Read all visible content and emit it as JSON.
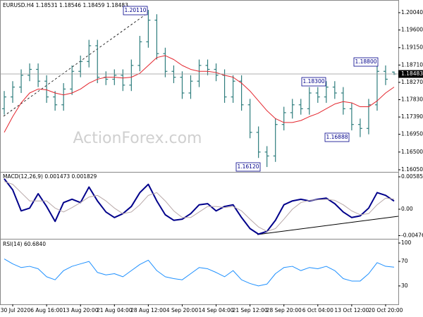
{
  "chart_data": [
    {
      "type": "ohlc",
      "title": "EURUSD.H4  1.18531 1.18546 1.18459 1.18483",
      "watermark": "ActionForex.com",
      "categories": [
        null,
        "30 Jul 2020",
        null,
        null,
        null,
        "6 Aug 16:00",
        null,
        null,
        null,
        "13 Aug 20:00",
        null,
        null,
        null,
        "21 Aug 04:00",
        null,
        null,
        null,
        "28 Aug 12:00",
        null,
        null,
        null,
        "4 Sep 20:00",
        null,
        null,
        null,
        "14 Sep 04:00",
        null,
        null,
        null,
        "21 Sep 12:00",
        null,
        null,
        null,
        "28 Sep 20:00",
        null,
        null,
        null,
        "6 Oct 04:00",
        null,
        null,
        null,
        "13 Oct 12:00",
        null,
        null,
        null,
        "20 Oct 20:00",
        null
      ],
      "open": [
        1.176,
        1.179,
        1.1815,
        1.1845,
        1.186,
        1.183,
        1.179,
        1.177,
        1.181,
        1.1855,
        1.188,
        1.192,
        1.184,
        1.1835,
        1.1845,
        1.182,
        1.187,
        1.193,
        1.1985,
        1.19,
        1.1855,
        1.184,
        1.18,
        1.183,
        1.187,
        1.186,
        1.1845,
        1.179,
        1.183,
        1.177,
        1.17,
        1.165,
        1.164,
        1.172,
        1.175,
        1.177,
        1.176,
        1.18,
        1.179,
        1.1815,
        1.18,
        1.176,
        1.172,
        1.171,
        1.177,
        1.1855,
        1.18531
      ],
      "high": [
        1.1805,
        1.183,
        1.186,
        1.1875,
        1.1875,
        1.1845,
        1.1805,
        1.1825,
        1.187,
        1.1895,
        1.1935,
        1.1935,
        1.1855,
        1.186,
        1.186,
        1.1885,
        1.1945,
        1.2011,
        1.2,
        1.1915,
        1.187,
        1.1855,
        1.1845,
        1.1885,
        1.1885,
        1.1875,
        1.186,
        1.1845,
        1.1845,
        1.1785,
        1.1715,
        1.1665,
        1.1735,
        1.1765,
        1.1785,
        1.1785,
        1.1815,
        1.1815,
        1.183,
        1.183,
        1.1815,
        1.1775,
        1.1735,
        1.1785,
        1.188,
        1.187,
        1.18546
      ],
      "low": [
        1.1745,
        1.1775,
        1.18,
        1.183,
        1.1815,
        1.1775,
        1.1755,
        1.1755,
        1.1795,
        1.184,
        1.1865,
        1.1825,
        1.182,
        1.182,
        1.1805,
        1.1805,
        1.1855,
        1.1915,
        1.1885,
        1.184,
        1.1825,
        1.1785,
        1.1785,
        1.1815,
        1.1845,
        1.183,
        1.1775,
        1.1775,
        1.1755,
        1.1685,
        1.1635,
        1.1612,
        1.1625,
        1.1705,
        1.1735,
        1.1745,
        1.1745,
        1.1775,
        1.1775,
        1.1785,
        1.1745,
        1.1705,
        1.1688,
        1.1695,
        1.1755,
        1.182,
        1.18459
      ],
      "close": [
        1.179,
        1.1815,
        1.1845,
        1.186,
        1.183,
        1.179,
        1.177,
        1.181,
        1.1855,
        1.188,
        1.192,
        1.184,
        1.1835,
        1.1845,
        1.182,
        1.187,
        1.193,
        1.1985,
        1.19,
        1.1855,
        1.184,
        1.18,
        1.183,
        1.187,
        1.186,
        1.1845,
        1.179,
        1.183,
        1.177,
        1.17,
        1.165,
        1.164,
        1.172,
        1.175,
        1.177,
        1.176,
        1.18,
        1.179,
        1.1815,
        1.18,
        1.176,
        1.172,
        1.171,
        1.177,
        1.1855,
        1.1835,
        1.18483
      ],
      "color": "#2e7d7d",
      "overlay": {
        "color": "#e4262e",
        "values": [
          1.17,
          1.174,
          1.1775,
          1.18,
          1.181,
          1.1808,
          1.18,
          1.1795,
          1.18,
          1.181,
          1.1825,
          1.1835,
          1.184,
          1.184,
          1.1838,
          1.184,
          1.185,
          1.187,
          1.189,
          1.1895,
          1.1885,
          1.187,
          1.186,
          1.1855,
          1.1855,
          1.1852,
          1.1845,
          1.184,
          1.1825,
          1.1805,
          1.178,
          1.1755,
          1.1735,
          1.1725,
          1.1725,
          1.173,
          1.174,
          1.1748,
          1.176,
          1.1772,
          1.1778,
          1.1775,
          1.1765,
          1.1765,
          1.178,
          1.18,
          1.1815
        ]
      },
      "current_price": 1.18483,
      "annotations": [
        "1.20110",
        "1.18800",
        "1.18300",
        "1.16888",
        "1.16120"
      ],
      "ylim": [
        1.15996,
        1.20326
      ],
      "yticks": [
        {
          "value": 1.2004,
          "label": "1.20040"
        },
        {
          "value": 1.196,
          "label": "1.19600"
        },
        {
          "value": 1.1915,
          "label": "1.19150"
        },
        {
          "value": 1.1871,
          "label": "1.18710"
        },
        {
          "value": 1.1827,
          "label": "1.18270"
        },
        {
          "value": 1.1783,
          "label": "1.17830"
        },
        {
          "value": 1.1739,
          "label": "1.17390"
        },
        {
          "value": 1.1695,
          "label": "1.16950"
        },
        {
          "value": 1.165,
          "label": "1.16500"
        },
        {
          "value": 1.1605,
          "label": "1.16050"
        }
      ]
    },
    {
      "type": "line",
      "title": "MACD(12,26,9) 0.001473 0.001829",
      "series": [
        {
          "color": "#00008b",
          "width": 2,
          "values": [
            0.0055,
            0.0035,
            -0.0003,
            0.0002,
            0.0028,
            0.0005,
            -0.0022,
            0.0012,
            0.0018,
            0.0012,
            0.004,
            0.0015,
            -0.0005,
            -0.0015,
            -0.0008,
            0.0005,
            0.003,
            0.0045,
            0.0015,
            -0.001,
            -0.002,
            -0.0018,
            -0.0008,
            0.0008,
            0.001,
            -0.0003,
            0.0005,
            0.0008,
            -0.0015,
            -0.0035,
            -0.0045,
            -0.004,
            -0.002,
            0.0008,
            0.0015,
            0.0018,
            0.0015,
            0.0018,
            0.002,
            0.001,
            -0.0005,
            -0.0015,
            -0.0012,
            0.0002,
            0.003,
            0.0025,
            0.001473
          ]
        },
        {
          "color": "#b8a8a8",
          "width": 1,
          "values": [
            0.005,
            0.0045,
            0.003,
            0.0015,
            0.0015,
            0.0015,
            0.0002,
            -0.0005,
            0.0003,
            0.0012,
            0.0022,
            0.0025,
            0.0015,
            0.0002,
            -0.0008,
            -0.0005,
            0.0008,
            0.0025,
            0.003,
            0.0015,
            -0.0003,
            -0.0015,
            -0.0015,
            -0.0005,
            0.0005,
            0.0005,
            0.0003,
            0.0005,
            -0.0003,
            -0.0018,
            -0.0032,
            -0.004,
            -0.0035,
            -0.0018,
            0.0,
            0.0012,
            0.0016,
            0.0017,
            0.0018,
            0.0016,
            0.0008,
            -0.0003,
            -0.001,
            -0.0008,
            0.0008,
            0.002,
            0.001829
          ]
        }
      ],
      "ylim": [
        -0.005343,
        0.006488
      ],
      "yticks": [
        0.005852,
        {
          "value": 0,
          "label": "0.00"
        },
        -0.004761
      ]
    },
    {
      "type": "line",
      "title": "RSI(14) 60.6840",
      "series": [
        {
          "color": "#1e90ff",
          "width": 1,
          "values": [
            74,
            66,
            60,
            62,
            58,
            45,
            40,
            55,
            62,
            66,
            70,
            52,
            48,
            50,
            45,
            55,
            65,
            72,
            55,
            45,
            42,
            40,
            50,
            60,
            58,
            52,
            45,
            55,
            40,
            34,
            30,
            33,
            50,
            60,
            62,
            55,
            60,
            58,
            62,
            55,
            42,
            38,
            38,
            50,
            68,
            62,
            60.684
          ]
        }
      ],
      "ylim": [
        0,
        104.6
      ],
      "yticks": [
        100,
        70,
        30
      ]
    }
  ]
}
